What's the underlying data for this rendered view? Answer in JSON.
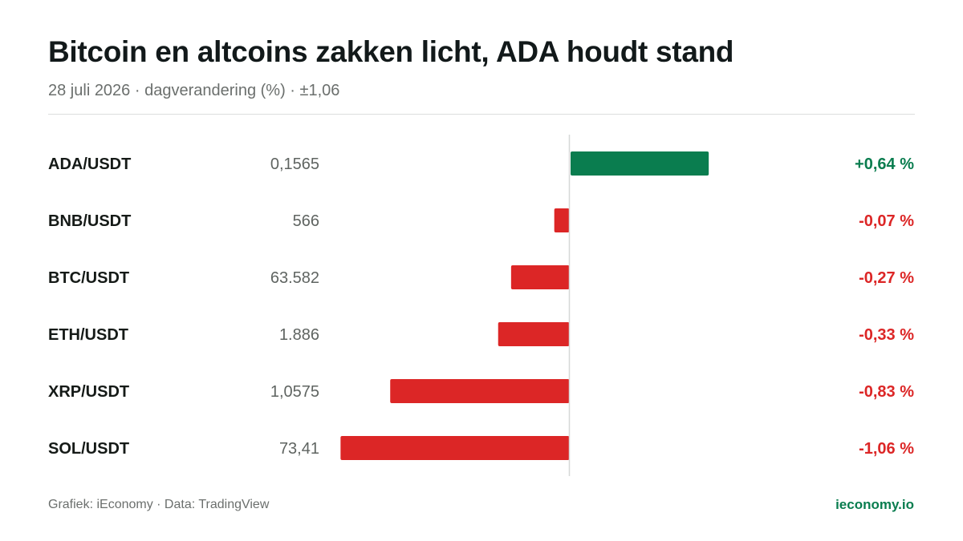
{
  "header": {
    "title": "Bitcoin en altcoins zakken licht, ADA houdt stand",
    "subtitle": "28 juli 2026 · dagverandering (%) · ±1,06"
  },
  "footer": {
    "source": "Grafiek: iEconomy · Data: TradingView",
    "brand": "ieconomy.io"
  },
  "colors": {
    "positive": "#0a7d4f",
    "negative": "#dc2626",
    "label": "#151a17",
    "price": "#5f6461",
    "axis": "#d6d8d7"
  },
  "chart_data": {
    "type": "bar",
    "orientation": "horizontal",
    "unit": "%",
    "xlim": [
      -1.06,
      1.06
    ],
    "categories": [
      "ADA/USDT",
      "BNB/USDT",
      "BTC/USDT",
      "ETH/USDT",
      "XRP/USDT",
      "SOL/USDT"
    ],
    "prices": [
      "0,1565",
      "566",
      "63.582",
      "1.886",
      "1,0575",
      "73,41"
    ],
    "values": [
      0.64,
      -0.07,
      -0.27,
      -0.33,
      -0.83,
      -1.06
    ],
    "value_labels": [
      "+0,64 %",
      "-0,07 %",
      "-0,27 %",
      "-0,33 %",
      "-0,83 %",
      "-1,06 %"
    ]
  }
}
